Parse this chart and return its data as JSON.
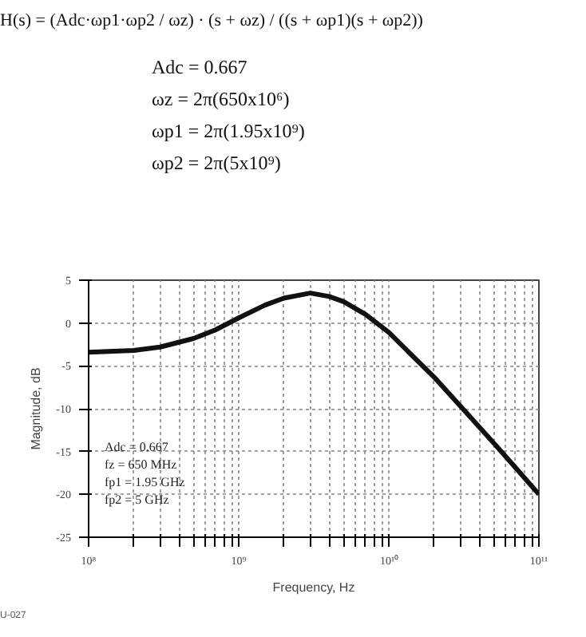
{
  "chart_data": {
    "type": "line",
    "title": "H(s) = (Adc·ωp1·ωp2 / ωz) · (s + ωz) / ((s + ωp1)(s + ωp2))",
    "xlabel": "Frequency, Hz",
    "ylabel": "Magnitude, dB",
    "annotations": [
      "Adc = 0.667",
      "ωz = 2π(650x10⁶)",
      "ωp1 = 2π(1.95x10⁹)",
      "ωp2 = 2π(5x10⁹)",
      "Adc = 0.667",
      "fz = 650 MHz",
      "fp1 = 1.95 GHz",
      "fp2 = 5 GHz",
      "U-027"
    ],
    "x": [
      100000000.0,
      200000000.0,
      300000000.0,
      500000000.0,
      700000000.0,
      1000000000.0,
      1500000000.0,
      2000000000.0,
      3000000000.0,
      4000000000.0,
      5000000000.0,
      7000000000.0,
      10000000000.0,
      20000000000.0,
      30000000000.0,
      50000000000.0,
      70000000000.0,
      100000000000.0
    ],
    "series": [
      {
        "color": "#111111",
        "values": [
          -3.4,
          -3.2,
          -2.8,
          -1.8,
          -0.8,
          0.6,
          2.1,
          2.9,
          3.5,
          3.1,
          2.5,
          1,
          -1.1,
          -6.3,
          -9.7,
          -14,
          -16.9,
          -20
        ]
      }
    ],
    "log": "x",
    "xlim": [
      100000000.0,
      100000000000.0
    ],
    "xticks": [
      {
        "value": 100000000.0,
        "label": "10⁸"
      },
      {
        "value": 200000000.0,
        "label": null
      },
      {
        "value": 300000000.0,
        "label": null
      },
      {
        "value": 400000000.0,
        "label": null
      },
      {
        "value": 500000000.0,
        "label": null
      },
      {
        "value": 600000000.0,
        "label": null
      },
      {
        "value": 700000000.0,
        "label": null
      },
      {
        "value": 800000000.0,
        "label": null
      },
      {
        "value": 900000000.0,
        "label": null
      },
      {
        "value": 1000000000.0,
        "label": "10⁹"
      },
      {
        "value": 2000000000.0,
        "label": null
      },
      {
        "value": 3000000000.0,
        "label": null
      },
      {
        "value": 4000000000.0,
        "label": null
      },
      {
        "value": 5000000000.0,
        "label": null
      },
      {
        "value": 6000000000.0,
        "label": null
      },
      {
        "value": 7000000000.0,
        "label": null
      },
      {
        "value": 8000000000.0,
        "label": null
      },
      {
        "value": 9000000000.0,
        "label": null
      },
      {
        "value": 10000000000.0,
        "label": "10¹⁰"
      },
      {
        "value": 20000000000.0,
        "label": null
      },
      {
        "value": 30000000000.0,
        "label": null
      },
      {
        "value": 40000000000.0,
        "label": null
      },
      {
        "value": 50000000000.0,
        "label": null
      },
      {
        "value": 60000000000.0,
        "label": null
      },
      {
        "value": 70000000000.0,
        "label": null
      },
      {
        "value": 80000000000.0,
        "label": null
      },
      {
        "value": 90000000000.0,
        "label": null
      },
      {
        "value": 100000000000.0,
        "label": "10¹¹"
      }
    ],
    "ylim": [
      -25,
      5
    ],
    "yticks": [
      -25,
      -20,
      -15,
      -10,
      -5,
      0,
      5
    ],
    "grid": true,
    "line_style": "solid"
  }
}
